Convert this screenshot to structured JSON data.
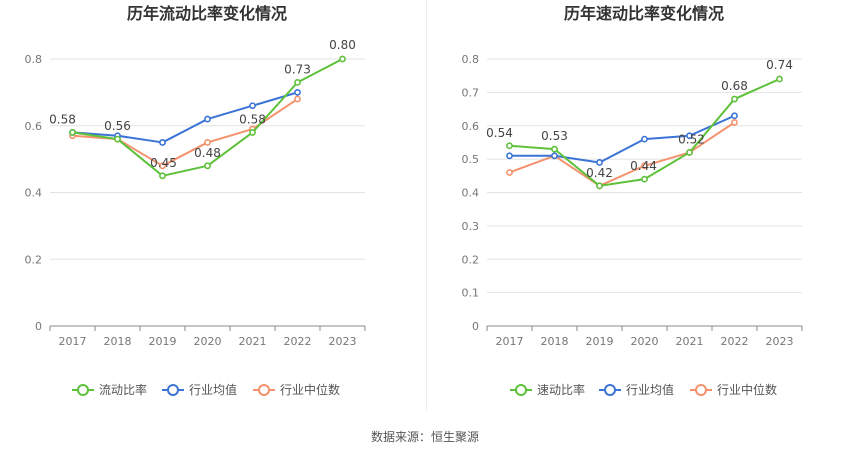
{
  "source_text": "数据来源：恒生聚源",
  "colors": {
    "company": "#5ec13a",
    "industry_avg": "#3b73d6",
    "industry_median": "#f4926d"
  },
  "chart_data": [
    {
      "type": "line",
      "title": "历年流动比率变化情况",
      "categories": [
        "2017",
        "2018",
        "2019",
        "2020",
        "2021",
        "2022",
        "2023"
      ],
      "ylim": [
        0,
        0.8
      ],
      "yticks": [
        "0",
        "0.2",
        "0.4",
        "0.6",
        "0.8"
      ],
      "grid": true,
      "legend_position": "bottom",
      "series": [
        {
          "name": "流动比率",
          "values": [
            0.58,
            0.56,
            0.45,
            0.48,
            0.58,
            0.73,
            0.8
          ],
          "labels": [
            "0.58",
            "0.56",
            "0.45",
            "0.48",
            "0.58",
            "0.73",
            "0.80"
          ]
        },
        {
          "name": "行业均值",
          "values": [
            0.58,
            0.57,
            0.55,
            0.62,
            0.66,
            0.7,
            null
          ]
        },
        {
          "name": "行业中位数",
          "values": [
            0.57,
            0.56,
            0.48,
            0.55,
            0.59,
            0.68,
            null
          ]
        }
      ]
    },
    {
      "type": "line",
      "title": "历年速动比率变化情况",
      "categories": [
        "2017",
        "2018",
        "2019",
        "2020",
        "2021",
        "2022",
        "2023"
      ],
      "ylim": [
        0,
        0.8
      ],
      "yticks": [
        "0",
        "0.1",
        "0.2",
        "0.3",
        "0.4",
        "0.5",
        "0.6",
        "0.7",
        "0.8"
      ],
      "grid": true,
      "legend_position": "bottom",
      "series": [
        {
          "name": "速动比率",
          "values": [
            0.54,
            0.53,
            0.42,
            0.44,
            0.52,
            0.68,
            0.74
          ],
          "labels": [
            "0.54",
            "0.53",
            "0.42",
            "0.44",
            "0.52",
            "0.68",
            "0.74"
          ]
        },
        {
          "name": "行业均值",
          "values": [
            0.51,
            0.51,
            0.49,
            0.56,
            0.57,
            0.63,
            null
          ]
        },
        {
          "name": "行业中位数",
          "values": [
            0.46,
            0.51,
            0.42,
            0.48,
            0.52,
            0.61,
            null
          ]
        }
      ]
    }
  ]
}
